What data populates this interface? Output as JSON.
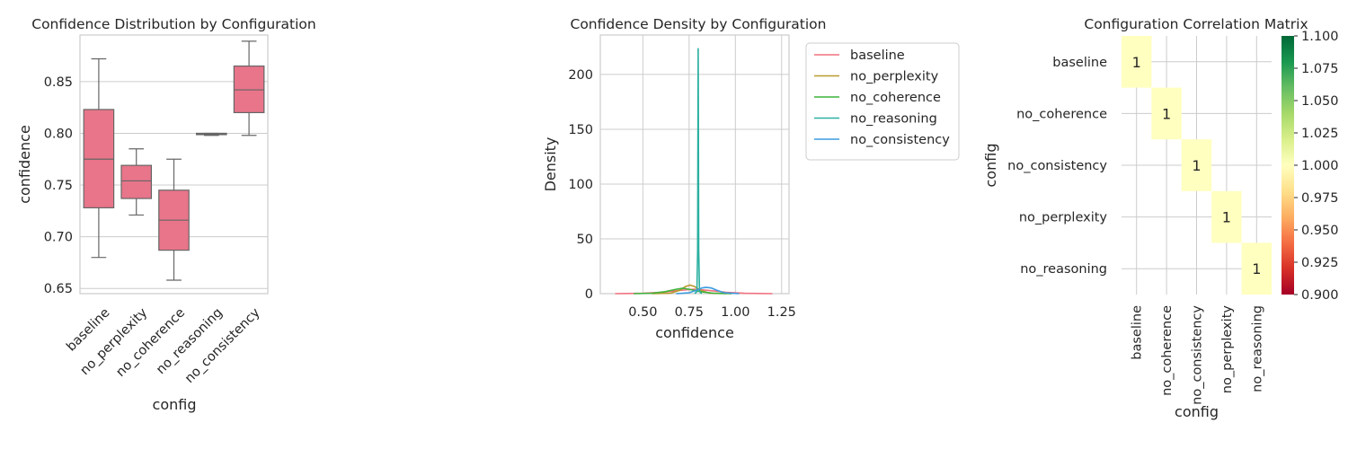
{
  "chart_data": [
    {
      "type": "box",
      "title": "Confidence Distribution by Configuration",
      "xlabel": "config",
      "ylabel": "confidence",
      "ylim": [
        0.645,
        0.895
      ],
      "yticks": [
        "0.65",
        "0.70",
        "0.75",
        "0.80",
        "0.85"
      ],
      "grid": "horizontal",
      "color": "#e8758a",
      "categories": [
        "baseline",
        "no_perplexity",
        "no_coherence",
        "no_reasoning",
        "no_consistency"
      ],
      "boxes": [
        {
          "whislo": 0.68,
          "q1": 0.728,
          "med": 0.775,
          "q3": 0.823,
          "whishi": 0.872
        },
        {
          "whislo": 0.721,
          "q1": 0.737,
          "med": 0.754,
          "q3": 0.769,
          "whishi": 0.785
        },
        {
          "whislo": 0.658,
          "q1": 0.687,
          "med": 0.716,
          "q3": 0.745,
          "whishi": 0.775
        },
        {
          "whislo": 0.798,
          "q1": 0.799,
          "med": 0.799,
          "q3": 0.8,
          "whishi": 0.8
        },
        {
          "whislo": 0.798,
          "q1": 0.82,
          "med": 0.842,
          "q3": 0.865,
          "whishi": 0.889
        }
      ]
    },
    {
      "type": "line",
      "title": "Confidence Density by Configuration",
      "xlabel": "confidence",
      "ylabel": "Density",
      "xlim": [
        0.27,
        1.29
      ],
      "ylim": [
        0,
        236
      ],
      "xticks": [
        "0.50",
        "0.75",
        "1.00",
        "1.25"
      ],
      "yticks": [
        "0",
        "50",
        "100",
        "150",
        "200"
      ],
      "grid": "both",
      "legend_position": "outside-right",
      "series": [
        {
          "name": "baseline",
          "color": "#f2707f",
          "x": [
            0.35,
            0.5,
            0.6,
            0.7,
            0.775,
            0.85,
            0.95,
            1.05,
            1.2
          ],
          "y": [
            0.0,
            0.3,
            1.2,
            3.0,
            4.0,
            3.0,
            1.2,
            0.3,
            0.0
          ]
        },
        {
          "name": "no_perplexity",
          "color": "#b89a2c",
          "x": [
            0.55,
            0.65,
            0.7,
            0.73,
            0.755,
            0.78,
            0.81,
            0.86,
            0.95
          ],
          "y": [
            0.0,
            0.5,
            3.0,
            6.5,
            7.8,
            6.5,
            3.0,
            0.5,
            0.0
          ]
        },
        {
          "name": "no_coherence",
          "color": "#3cb43c",
          "x": [
            0.45,
            0.55,
            0.62,
            0.68,
            0.716,
            0.75,
            0.81,
            0.88,
            0.98
          ],
          "y": [
            0.0,
            0.4,
            1.8,
            4.0,
            5.0,
            4.0,
            1.8,
            0.4,
            0.0
          ]
        },
        {
          "name": "no_reasoning",
          "color": "#2ab0a0",
          "x": [
            0.78,
            0.792,
            0.796,
            0.798,
            0.799,
            0.8,
            0.802,
            0.806,
            0.818
          ],
          "y": [
            0,
            2,
            40,
            170,
            224,
            170,
            40,
            2,
            0
          ]
        },
        {
          "name": "no_consistency",
          "color": "#3b9be0",
          "x": [
            0.68,
            0.75,
            0.79,
            0.82,
            0.842,
            0.87,
            0.9,
            0.94,
            1.02
          ],
          "y": [
            0.0,
            0.8,
            3.0,
            5.2,
            5.8,
            5.2,
            3.0,
            0.8,
            0.0
          ]
        }
      ]
    },
    {
      "type": "heatmap",
      "title": "Configuration Correlation Matrix",
      "xlabel": "config",
      "ylabel": "config",
      "rows": [
        "baseline",
        "no_coherence",
        "no_consistency",
        "no_perplexity",
        "no_reasoning"
      ],
      "cols": [
        "baseline",
        "no_coherence",
        "no_consistency",
        "no_perplexity",
        "no_reasoning"
      ],
      "cells": [
        {
          "row": 0,
          "col": 0,
          "value": 1,
          "label": "1"
        },
        {
          "row": 1,
          "col": 1,
          "value": 1,
          "label": "1"
        },
        {
          "row": 2,
          "col": 2,
          "value": 1,
          "label": "1"
        },
        {
          "row": 3,
          "col": 3,
          "value": 1,
          "label": "1"
        },
        {
          "row": 4,
          "col": 4,
          "value": 1,
          "label": "1"
        }
      ],
      "cell_color": "#ffffbf",
      "colormap": "RdYlGn",
      "colorbar_range": [
        0.9,
        1.1
      ],
      "colorbar_ticks": [
        "0.900",
        "0.925",
        "0.950",
        "0.975",
        "1.000",
        "1.025",
        "1.050",
        "1.075",
        "1.100"
      ]
    }
  ]
}
